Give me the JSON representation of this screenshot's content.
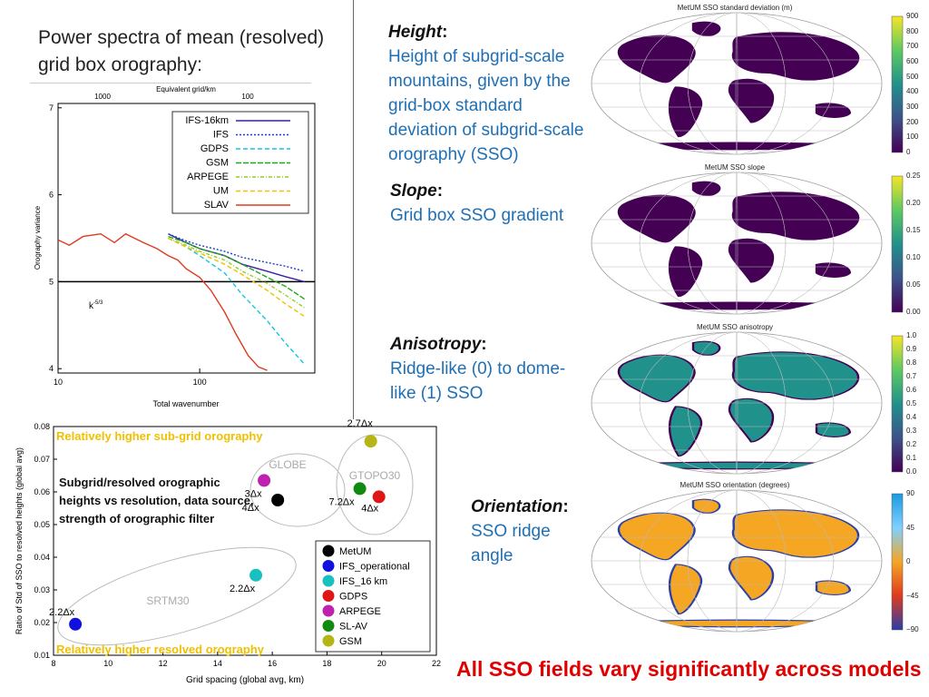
{
  "slide": {
    "left_title": "Power spectra of mean (resolved) grid box orography:",
    "bottom_message": "All SSO fields vary significantly across models"
  },
  "sections": [
    {
      "heading": "Height",
      "body": "Height of subgrid-scale mountains, given by the grid-box standard deviation of subgrid-scale orography (SSO)"
    },
    {
      "heading": "Slope",
      "body": "Grid box SSO gradient"
    },
    {
      "heading": "Anisotropy",
      "body": "Ridge-like (0) to dome-like (1) SSO"
    },
    {
      "heading": "Orientation",
      "body": "SSO ridge angle"
    }
  ],
  "maps": [
    {
      "title": "MetUM SSO standard deviation (m)",
      "ticks": [
        "900",
        "800",
        "700",
        "600",
        "500",
        "400",
        "300",
        "200",
        "100",
        "0"
      ],
      "colormap": [
        "#f7e425",
        "#5ec962",
        "#21918c",
        "#3b528b",
        "#440154"
      ]
    },
    {
      "title": "MetUM SSO slope",
      "ticks": [
        "0.25",
        "0.20",
        "0.15",
        "0.10",
        "0.05",
        "0.00"
      ],
      "colormap": [
        "#f7e425",
        "#5ec962",
        "#21918c",
        "#3b528b",
        "#440154"
      ]
    },
    {
      "title": "MetUM SSO anisotropy",
      "ticks": [
        "1.0",
        "0.9",
        "0.8",
        "0.7",
        "0.6",
        "0.5",
        "0.4",
        "0.3",
        "0.2",
        "0.1",
        "0.0"
      ],
      "colormap": [
        "#f7e425",
        "#5ec962",
        "#21918c",
        "#3b528b",
        "#440154"
      ]
    },
    {
      "title": "MetUM SSO orientation (degrees)",
      "ticks": [
        "90",
        "45",
        "0",
        "−45",
        "−90"
      ],
      "colormap": [
        "#1a9ae0",
        "#7fd0ff",
        "#f5a623",
        "#e03a1e",
        "#2a3fa8"
      ]
    }
  ],
  "chart_data": [
    {
      "type": "line",
      "ylabel": "Orography variance",
      "xlabel": "Total wavenumber",
      "top_axis_label": "Equivalent grid/km",
      "top_ticks": [
        "1000",
        "100"
      ],
      "x_ticks": [
        "10",
        "100"
      ],
      "y_ticks": [
        "4",
        "5",
        "6",
        "7"
      ],
      "xscale": "log",
      "xlim": [
        10,
        650
      ],
      "ylim": [
        3.95,
        7.05
      ],
      "annotation": "k",
      "annotation_sup": "-5/3",
      "reference_line_y": 5,
      "legend": "top-right",
      "series": [
        {
          "name": "IFS-16km",
          "color": "#3a1fa8",
          "dash": "",
          "x": [
            60,
            80,
            100,
            150,
            200,
            300,
            400,
            550
          ],
          "y": [
            5.55,
            5.45,
            5.38,
            5.3,
            5.2,
            5.12,
            5.06,
            5.0
          ]
        },
        {
          "name": "IFS",
          "color": "#1a3fd0",
          "dash": "2,2",
          "x": [
            60,
            80,
            100,
            150,
            200,
            300,
            400,
            550
          ],
          "y": [
            5.55,
            5.47,
            5.42,
            5.35,
            5.28,
            5.22,
            5.18,
            5.12
          ]
        },
        {
          "name": "GDPS",
          "color": "#13c6e0",
          "dash": "5,3",
          "x": [
            60,
            80,
            100,
            150,
            200,
            300,
            400,
            550
          ],
          "y": [
            5.5,
            5.4,
            5.3,
            5.1,
            4.85,
            4.55,
            4.3,
            4.05
          ]
        },
        {
          "name": "GSM",
          "color": "#1aa81a",
          "dash": "6,2",
          "x": [
            60,
            80,
            100,
            150,
            200,
            300,
            400,
            550
          ],
          "y": [
            5.52,
            5.45,
            5.38,
            5.3,
            5.2,
            5.05,
            4.95,
            4.8
          ]
        },
        {
          "name": "ARPEGE",
          "color": "#8fd11f",
          "dash": "4,2,1,2",
          "x": [
            60,
            80,
            100,
            150,
            200,
            300,
            400,
            550
          ],
          "y": [
            5.5,
            5.42,
            5.35,
            5.25,
            5.12,
            4.98,
            4.85,
            4.7
          ]
        },
        {
          "name": "UM",
          "color": "#f2c000",
          "dash": "5,3",
          "x": [
            60,
            80,
            100,
            150,
            200,
            300,
            400,
            550
          ],
          "y": [
            5.5,
            5.4,
            5.33,
            5.2,
            5.08,
            4.9,
            4.75,
            4.6
          ]
        },
        {
          "name": "SLAV",
          "color": "#e03a1e",
          "dash": "",
          "x": [
            10,
            12,
            15,
            20,
            25,
            30,
            40,
            50,
            60,
            70,
            80,
            100,
            120,
            150,
            180,
            220,
            260,
            300
          ],
          "y": [
            5.48,
            5.42,
            5.52,
            5.55,
            5.45,
            5.55,
            5.45,
            5.38,
            5.3,
            5.25,
            5.15,
            5.05,
            4.9,
            4.65,
            4.4,
            4.15,
            4.02,
            3.98
          ]
        }
      ]
    },
    {
      "type": "scatter",
      "xlabel": "Grid spacing (global avg, km)",
      "ylabel": "Ratio of Std of SSO to resolved heights (global avg)",
      "xlim": [
        8,
        22
      ],
      "ylim": [
        0.01,
        0.08
      ],
      "x_ticks": [
        "8",
        "10",
        "12",
        "14",
        "16",
        "18",
        "20",
        "22"
      ],
      "y_ticks": [
        "0.01",
        "0.02",
        "0.03",
        "0.04",
        "0.05",
        "0.06",
        "0.07",
        "0.08"
      ],
      "top_banner": "Relatively higher sub-grid orography",
      "bottom_banner": "Relatively higher resolved orography",
      "annotation_text": "Subgrid/resolved orographic heights vs resolution, data source, strength of orographic filter",
      "groups": [
        {
          "label": "GLOBE"
        },
        {
          "label": "GTOPO30"
        },
        {
          "label": "SRTM30"
        }
      ],
      "series": [
        {
          "name": "MetUM",
          "color": "#000000",
          "x": [
            16.2
          ],
          "y": [
            0.0575
          ],
          "label": "4Δx"
        },
        {
          "name": "IFS_operational",
          "color": "#1010e0",
          "x": [
            8.8
          ],
          "y": [
            0.0195
          ],
          "label": "2.2Δx"
        },
        {
          "name": "IFS_16 km",
          "color": "#19c0c0",
          "x": [
            15.4
          ],
          "y": [
            0.0345
          ],
          "label": "2.2Δx"
        },
        {
          "name": "GDPS",
          "color": "#e01515",
          "x": [
            19.9
          ],
          "y": [
            0.0585
          ],
          "label": "4Δx"
        },
        {
          "name": "ARPEGE",
          "color": "#c020b0",
          "x": [
            15.7
          ],
          "y": [
            0.0635
          ],
          "label": "3Δx"
        },
        {
          "name": "SL-AV",
          "color": "#108a10",
          "x": [
            19.2
          ],
          "y": [
            0.061
          ],
          "label": "7.2Δx"
        },
        {
          "name": "GSM",
          "color": "#b5b515",
          "x": [
            19.6
          ],
          "y": [
            0.0755
          ],
          "label": "2.7Δx"
        }
      ]
    }
  ]
}
